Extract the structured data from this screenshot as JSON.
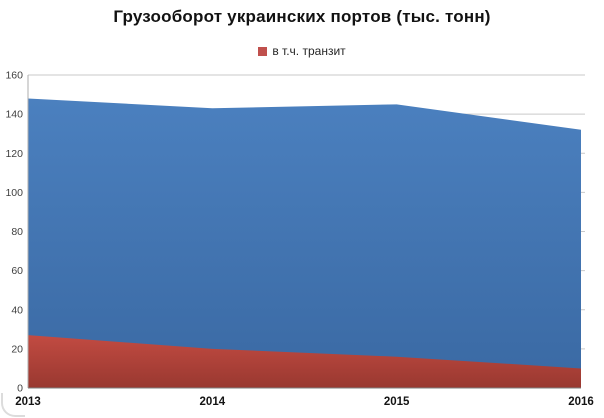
{
  "chart": {
    "title": "Грузооборот украинских портов (тыс. тонн)",
    "legend": [
      {
        "label": "в т.ч. транзит",
        "color": "#C0504D"
      }
    ]
  },
  "chart_data": {
    "type": "area",
    "title": "Грузооборот украинских портов (тыс. тонн)",
    "categories": [
      "2013",
      "2014",
      "2015",
      "2016"
    ],
    "series": [
      {
        "name": "",
        "values": [
          148,
          143,
          145,
          132
        ],
        "color_top": "#4B80BF",
        "color_bottom": "#3A69A3"
      },
      {
        "name": "в т.ч. транзит",
        "values": [
          27,
          20,
          16,
          10
        ],
        "color_top": "#C24B42",
        "color_bottom": "#993830"
      }
    ],
    "xlabel": "",
    "ylabel": "",
    "ylim": [
      0,
      160
    ],
    "ytick_step": 20,
    "yticks": [
      0,
      20,
      40,
      60,
      80,
      100,
      120,
      140,
      160
    ],
    "grid": true,
    "legend_position": "top-center",
    "legend_visible_series": [
      "в т.ч. транзит"
    ],
    "colors": {
      "gridline": "#c9c9c9",
      "axis_left": "#adadad",
      "axis_bottom": "#7f7f7f",
      "y_tick_label": "#3f3f3f",
      "x_tick_label": "#141414"
    }
  }
}
